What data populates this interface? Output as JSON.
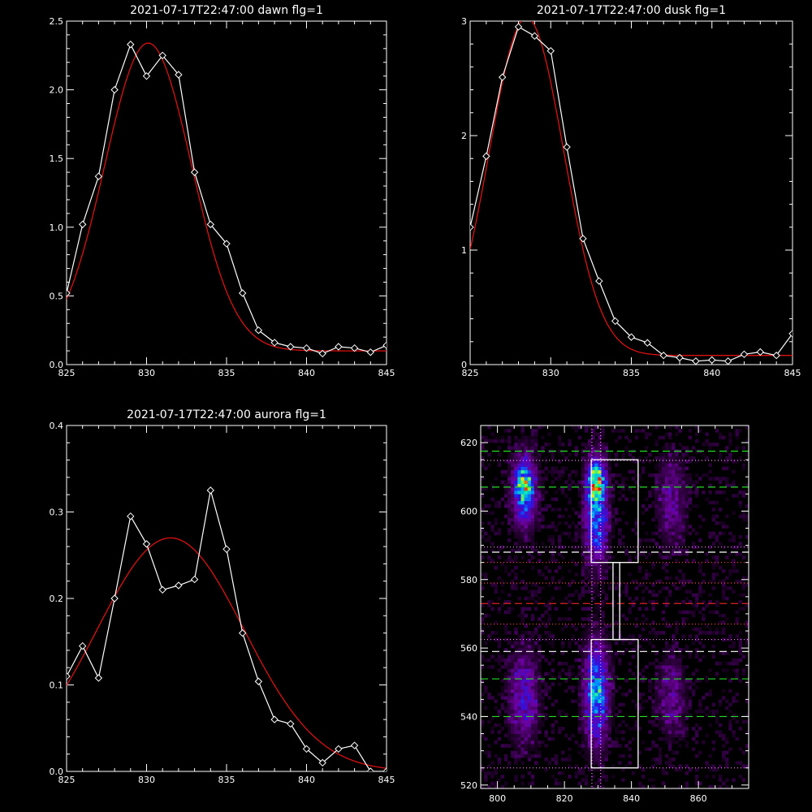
{
  "chart_data": [
    {
      "type": "line",
      "title": "2021-07-17T22:47:00 dawn flg=1",
      "xlim": [
        825,
        845
      ],
      "ylim": [
        0,
        2.5
      ],
      "xticks": [
        "825",
        "830",
        "835",
        "840",
        "845"
      ],
      "yticks": [
        "0.0",
        "0.5",
        "1.0",
        "1.5",
        "2.0",
        "2.5"
      ],
      "ytick_values": [
        0,
        0.5,
        1.0,
        1.5,
        2.0,
        2.5
      ],
      "series": [
        {
          "style": "white-diamonds",
          "x": [
            825,
            826,
            827,
            828,
            829,
            830,
            831,
            832,
            833,
            834,
            835,
            836,
            837,
            838,
            839,
            840,
            841,
            842,
            843,
            844,
            845
          ],
          "y": [
            0.52,
            1.02,
            1.37,
            2.0,
            2.33,
            2.1,
            2.25,
            2.11,
            1.4,
            1.02,
            0.88,
            0.52,
            0.25,
            0.16,
            0.13,
            0.12,
            0.08,
            0.13,
            0.12,
            0.09,
            0.14
          ]
        },
        {
          "style": "red-fit",
          "gauss": {
            "amp": 2.24,
            "center": 830.1,
            "sigma": 2.7,
            "base": 0.1
          }
        }
      ]
    },
    {
      "type": "line",
      "title": "2021-07-17T22:47:00 dusk flg=1",
      "xlim": [
        825,
        845
      ],
      "ylim": [
        0,
        3
      ],
      "xticks": [
        "825",
        "830",
        "835",
        "840",
        "845"
      ],
      "yticks": [
        "0",
        "1",
        "2",
        "3"
      ],
      "ytick_values": [
        0,
        1,
        2,
        3
      ],
      "series": [
        {
          "style": "white-diamonds",
          "x": [
            825,
            826,
            827,
            828,
            829,
            830,
            831,
            832,
            833,
            834,
            835,
            836,
            837,
            838,
            839,
            840,
            841,
            842,
            843,
            844,
            845
          ],
          "y": [
            1.2,
            1.82,
            2.51,
            2.95,
            2.87,
            2.74,
            1.9,
            1.1,
            0.73,
            0.38,
            0.24,
            0.19,
            0.08,
            0.06,
            0.03,
            0.04,
            0.03,
            0.09,
            0.11,
            0.08,
            0.27
          ]
        },
        {
          "style": "red-fit",
          "gauss": {
            "amp": 2.95,
            "center": 828.5,
            "sigma": 2.3,
            "base": 0.08
          }
        }
      ]
    },
    {
      "type": "line",
      "title": "2021-07-17T22:47:00 aurora flg=1",
      "xlim": [
        825,
        845
      ],
      "ylim": [
        0,
        0.4
      ],
      "xticks": [
        "825",
        "830",
        "835",
        "840",
        "845"
      ],
      "yticks": [
        "0.0",
        "0.1",
        "0.2",
        "0.3",
        "0.4"
      ],
      "ytick_values": [
        0,
        0.1,
        0.2,
        0.3,
        0.4
      ],
      "series": [
        {
          "style": "white-diamonds",
          "x": [
            825,
            826,
            827,
            828,
            829,
            830,
            831,
            832,
            833,
            834,
            835,
            836,
            837,
            838,
            839,
            840,
            841,
            842,
            843,
            844,
            845
          ],
          "y": [
            0.11,
            0.145,
            0.108,
            0.2,
            0.295,
            0.263,
            0.21,
            0.215,
            0.222,
            0.325,
            0.257,
            0.16,
            0.104,
            0.06,
            0.055,
            0.026,
            0.01,
            0.026,
            0.03,
            0.0,
            0.0
          ]
        },
        {
          "style": "red-fit",
          "gauss": {
            "amp": 0.27,
            "center": 831.5,
            "sigma": 4.6,
            "base": 0.0
          }
        }
      ]
    },
    {
      "type": "heatmap",
      "title": "",
      "xlim": [
        795,
        875
      ],
      "ylim": [
        519,
        625
      ],
      "xticks": [
        "800",
        "820",
        "840",
        "860"
      ],
      "xtick_values": [
        800,
        820,
        840,
        860
      ],
      "yticks": [
        "520",
        "540",
        "560",
        "580",
        "600",
        "620"
      ],
      "ytick_values": [
        520,
        540,
        560,
        580,
        600,
        620
      ],
      "blobs": [
        {
          "x": 808,
          "y": 606,
          "sx": 2.5,
          "sy": 7,
          "amp": 0.55
        },
        {
          "x": 808,
          "y": 608,
          "sx": 1.5,
          "sy": 2.5,
          "amp": 0.35
        },
        {
          "x": 829.5,
          "y": 600,
          "sx": 2.3,
          "sy": 10,
          "amp": 0.55
        },
        {
          "x": 829.5,
          "y": 609,
          "sx": 1.6,
          "sy": 3.5,
          "amp": 0.65
        },
        {
          "x": 852,
          "y": 603,
          "sx": 3,
          "sy": 9,
          "amp": 0.22
        },
        {
          "x": 808,
          "y": 546,
          "sx": 3,
          "sy": 9,
          "amp": 0.32
        },
        {
          "x": 829.5,
          "y": 547,
          "sx": 2.4,
          "sy": 10,
          "amp": 0.58
        },
        {
          "x": 852,
          "y": 546,
          "sx": 3,
          "sy": 8,
          "amp": 0.2
        }
      ],
      "hlines": [
        {
          "y": 617.5,
          "color": "#22dd22",
          "style": "dashed"
        },
        {
          "y": 607,
          "color": "#22dd22",
          "style": "dashed"
        },
        {
          "y": 614.8,
          "color": "#ff88ff",
          "style": "dotted"
        },
        {
          "y": 588,
          "color": "#ffffff",
          "style": "dashed"
        },
        {
          "y": 589.5,
          "color": "#ff88ff",
          "style": "dotted"
        },
        {
          "y": 585,
          "color": "#ff4444",
          "style": "dotted"
        },
        {
          "y": 579,
          "color": "#ff4444",
          "style": "dotted"
        },
        {
          "y": 573,
          "color": "#dd2222",
          "style": "dashed"
        },
        {
          "y": 567,
          "color": "#ff4444",
          "style": "dotted"
        },
        {
          "y": 562.5,
          "color": "#ff88ff",
          "style": "dotted"
        },
        {
          "y": 559,
          "color": "#ffffff",
          "style": "dashed"
        },
        {
          "y": 551,
          "color": "#22dd22",
          "style": "dashed"
        },
        {
          "y": 540,
          "color": "#22dd22",
          "style": "dashed"
        },
        {
          "y": 525,
          "color": "#ff88ff",
          "style": "dotted"
        }
      ],
      "vlines": [
        {
          "x": 828.2,
          "color": "#ff88ff",
          "style": "dotted"
        },
        {
          "x": 830.8,
          "color": "#ff88ff",
          "style": "dotted"
        }
      ],
      "boxes": [
        {
          "x0": 828,
          "x1": 842,
          "y0": 585,
          "y1": 615
        },
        {
          "x0": 828,
          "x1": 842,
          "y0": 525,
          "y1": 562.5
        },
        {
          "x0": 834.5,
          "x1": 836.5,
          "y0": 562.5,
          "y1": 585
        }
      ]
    }
  ]
}
